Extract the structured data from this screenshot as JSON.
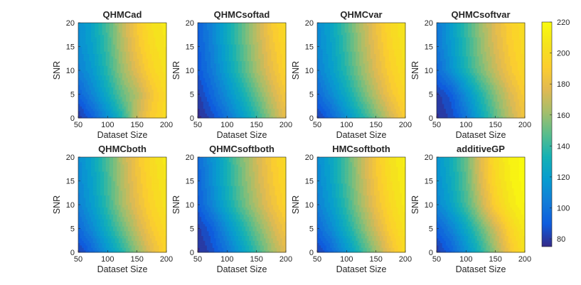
{
  "chart_data": {
    "type": "heatmap",
    "style": "filled-contour",
    "colormap": "parula",
    "xlabel": "Dataset Size",
    "ylabel": "SNR",
    "xlim": [
      50,
      200
    ],
    "ylim": [
      0,
      20
    ],
    "xticks": [
      50,
      100,
      150,
      200
    ],
    "yticks": [
      0,
      5,
      10,
      15,
      20
    ],
    "x": [
      50,
      75,
      100,
      125,
      150,
      175,
      200
    ],
    "y": [
      0,
      5,
      10,
      15,
      20
    ],
    "colorbar": {
      "min": 75,
      "max": 220,
      "ticks": [
        80,
        100,
        120,
        140,
        160,
        180,
        200,
        220
      ]
    },
    "panels": [
      {
        "title": "QHMCad",
        "z": [
          [
            78,
            92,
            112,
            135,
            170,
            190,
            200
          ],
          [
            92,
            108,
            128,
            150,
            165,
            185,
            200
          ],
          [
            105,
            118,
            138,
            160,
            178,
            195,
            205
          ],
          [
            110,
            123,
            142,
            165,
            185,
            200,
            208
          ],
          [
            112,
            125,
            145,
            168,
            188,
            203,
            210
          ]
        ]
      },
      {
        "title": "QHMCsoftad",
        "z": [
          [
            75,
            85,
            100,
            118,
            138,
            160,
            180
          ],
          [
            80,
            95,
            112,
            130,
            150,
            170,
            188
          ],
          [
            88,
            103,
            122,
            142,
            162,
            180,
            195
          ],
          [
            90,
            106,
            126,
            146,
            166,
            184,
            198
          ],
          [
            92,
            108,
            128,
            148,
            168,
            188,
            200
          ]
        ]
      },
      {
        "title": "QHMCvar",
        "z": [
          [
            80,
            95,
            113,
            133,
            153,
            172,
            190
          ],
          [
            95,
            110,
            128,
            148,
            167,
            185,
            198
          ],
          [
            105,
            120,
            138,
            158,
            176,
            192,
            203
          ],
          [
            108,
            123,
            142,
            162,
            180,
            196,
            206
          ],
          [
            110,
            125,
            145,
            165,
            183,
            198,
            208
          ]
        ]
      },
      {
        "title": "QHMCsoftvar",
        "z": [
          [
            76,
            84,
            100,
            125,
            148,
            168,
            185
          ],
          [
            80,
            90,
            112,
            135,
            156,
            175,
            190
          ],
          [
            95,
            113,
            133,
            153,
            170,
            186,
            198
          ],
          [
            100,
            118,
            138,
            158,
            175,
            190,
            200
          ],
          [
            102,
            120,
            140,
            160,
            178,
            192,
            202
          ]
        ]
      },
      {
        "title": "QHMCboth",
        "z": [
          [
            80,
            95,
            115,
            135,
            158,
            178,
            195
          ],
          [
            95,
            110,
            130,
            150,
            170,
            188,
            200
          ],
          [
            105,
            120,
            140,
            162,
            180,
            195,
            205
          ],
          [
            108,
            123,
            143,
            165,
            183,
            198,
            208
          ],
          [
            110,
            125,
            145,
            167,
            186,
            200,
            210
          ]
        ]
      },
      {
        "title": "QHMCsoftboth",
        "z": [
          [
            76,
            85,
            100,
            120,
            140,
            160,
            178
          ],
          [
            80,
            92,
            112,
            132,
            152,
            170,
            186
          ],
          [
            90,
            108,
            128,
            148,
            165,
            182,
            195
          ],
          [
            93,
            112,
            132,
            152,
            170,
            186,
            198
          ],
          [
            95,
            114,
            134,
            155,
            172,
            188,
            200
          ]
        ]
      },
      {
        "title": "HMCsoftboth",
        "z": [
          [
            80,
            95,
            115,
            138,
            160,
            182,
            200
          ],
          [
            95,
            110,
            130,
            152,
            173,
            192,
            205
          ],
          [
            105,
            120,
            140,
            162,
            182,
            198,
            210
          ],
          [
            108,
            124,
            144,
            166,
            186,
            202,
            212
          ],
          [
            110,
            126,
            146,
            168,
            188,
            204,
            214
          ]
        ]
      },
      {
        "title": "additiveGP",
        "z": [
          [
            78,
            92,
            112,
            135,
            160,
            185,
            205
          ],
          [
            92,
            106,
            126,
            148,
            172,
            195,
            210
          ],
          [
            108,
            123,
            143,
            168,
            192,
            208,
            218
          ],
          [
            112,
            128,
            148,
            175,
            198,
            212,
            220
          ],
          [
            115,
            130,
            150,
            178,
            200,
            214,
            220
          ]
        ]
      }
    ]
  }
}
